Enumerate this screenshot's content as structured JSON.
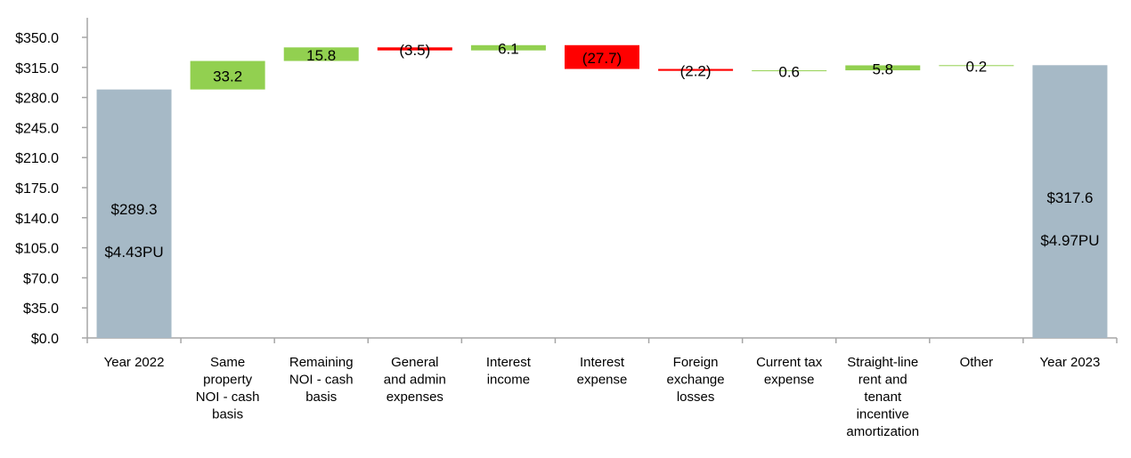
{
  "chart_data": {
    "type": "waterfall",
    "title": "",
    "xlabel": "",
    "ylabel": "",
    "ylim": [
      0,
      350
    ],
    "ytick_step": 35,
    "ytick_labels": [
      "$0.0",
      "$35.0",
      "$70.0",
      "$105.0",
      "$140.0",
      "$175.0",
      "$210.0",
      "$245.0",
      "$280.0",
      "$315.0",
      "$350.0"
    ],
    "grid": false,
    "legend": "none",
    "colors": {
      "total": "#a6b9c6",
      "increase": "#92d050",
      "decrease": "#ff0000",
      "axis": "#a6a6a6",
      "text": "#000000"
    },
    "categories": [
      [
        "Year 2022"
      ],
      [
        "Same",
        "property",
        "NOI - cash",
        "basis"
      ],
      [
        "Remaining",
        "NOI - cash",
        "basis"
      ],
      [
        "General",
        "and admin",
        "expenses"
      ],
      [
        "Interest",
        "income"
      ],
      [
        "Interest",
        "expense"
      ],
      [
        "Foreign",
        "exchange",
        "losses"
      ],
      [
        "Current tax",
        "expense"
      ],
      [
        "Straight-line",
        "rent and",
        "tenant",
        "incentive",
        "amortization"
      ],
      [
        "Other"
      ],
      [
        "Year 2023"
      ]
    ],
    "bars": [
      {
        "kind": "total",
        "start": 0,
        "end": 289.3,
        "labels": [
          "$289.3",
          "$4.43PU"
        ]
      },
      {
        "kind": "increase",
        "start": 289.3,
        "end": 322.5,
        "labels": [
          "33.2"
        ]
      },
      {
        "kind": "increase",
        "start": 322.5,
        "end": 338.3,
        "labels": [
          "15.8"
        ]
      },
      {
        "kind": "decrease",
        "start": 338.3,
        "end": 334.8,
        "labels": [
          "(3.5)"
        ]
      },
      {
        "kind": "increase",
        "start": 334.8,
        "end": 340.9,
        "labels": [
          "6.1"
        ]
      },
      {
        "kind": "decrease",
        "start": 340.9,
        "end": 313.2,
        "labels": [
          "(27.7)"
        ]
      },
      {
        "kind": "decrease",
        "start": 313.2,
        "end": 311.0,
        "labels": [
          "(2.2)"
        ]
      },
      {
        "kind": "increase",
        "start": 311.0,
        "end": 311.6,
        "labels": [
          "0.6"
        ]
      },
      {
        "kind": "increase",
        "start": 311.6,
        "end": 317.4,
        "labels": [
          "5.8"
        ]
      },
      {
        "kind": "increase",
        "start": 317.4,
        "end": 317.6,
        "labels": [
          "0.2"
        ]
      },
      {
        "kind": "total",
        "start": 0,
        "end": 317.6,
        "labels": [
          "$317.6",
          "$4.97PU"
        ]
      }
    ]
  }
}
